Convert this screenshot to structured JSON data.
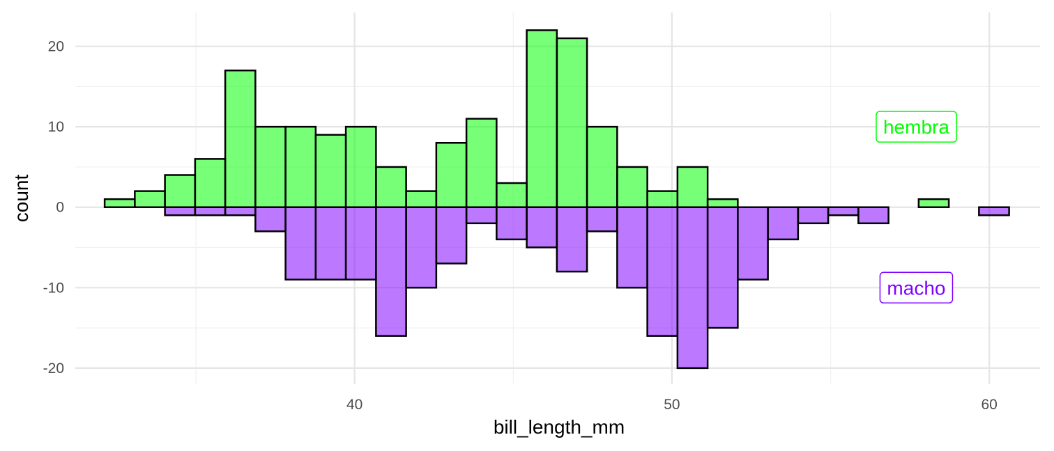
{
  "chart_data": {
    "type": "bar",
    "xlabel": "bill_length_mm",
    "ylabel": "count",
    "xlim": [
      31.2,
      61.6
    ],
    "ylim": [
      -22.0,
      24.2
    ],
    "bin_width": 0.95,
    "bin_centers": [
      32.6,
      33.55,
      34.5,
      35.45,
      36.4,
      37.35,
      38.3,
      39.25,
      40.2,
      41.15,
      42.1,
      43.05,
      44.0,
      44.95,
      45.9,
      46.85,
      47.8,
      48.75,
      49.7,
      50.65,
      51.6,
      52.55,
      53.5,
      54.45,
      55.4,
      56.35,
      57.3,
      58.25,
      59.2,
      60.15
    ],
    "x_ticks": [
      40,
      50,
      60
    ],
    "x_tick_labels": [
      "40",
      "50",
      "60"
    ],
    "y_ticks": [
      -20,
      -10,
      0,
      10,
      20
    ],
    "y_tick_labels": [
      "-20",
      "-10",
      "0",
      "10",
      "20"
    ],
    "grid": true,
    "series": [
      {
        "name": "hembra",
        "color": "#00ff00",
        "direction": "up",
        "values": [
          1,
          2,
          4,
          6,
          17,
          10,
          10,
          9,
          10,
          5,
          2,
          8,
          11,
          3,
          22,
          21,
          10,
          5,
          2,
          5,
          1,
          0,
          0,
          0,
          0,
          0,
          0,
          1,
          0,
          0
        ]
      },
      {
        "name": "macho",
        "color": "#8000ff",
        "direction": "down",
        "values": [
          0,
          0,
          1,
          1,
          1,
          3,
          9,
          9,
          9,
          16,
          10,
          7,
          2,
          4,
          5,
          8,
          3,
          10,
          16,
          20,
          15,
          9,
          4,
          2,
          1,
          2,
          0,
          0,
          0,
          1
        ]
      }
    ],
    "annotations": [
      {
        "text": "hembra",
        "x": 57.7,
        "y": 10,
        "color": "#00ff00"
      },
      {
        "text": "macho",
        "x": 57.7,
        "y": -10,
        "color": "#8000ff"
      }
    ]
  }
}
